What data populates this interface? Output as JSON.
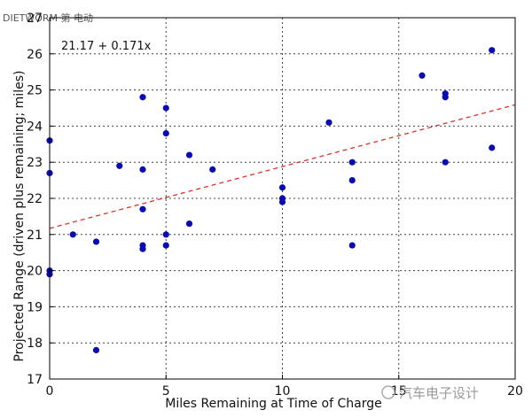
{
  "watermark_top": "DIETWORM 第 电动",
  "watermark_bottom": "汽车电子设计",
  "chart_data": {
    "type": "scatter",
    "title": "",
    "xlabel": "Miles Remaining at Time of Charge",
    "ylabel": "Projected Range (driven plus remaining; miles)",
    "xlim": [
      0,
      20
    ],
    "ylim": [
      17,
      27
    ],
    "xticks": [
      0,
      5,
      10,
      15,
      20
    ],
    "yticks": [
      17,
      18,
      19,
      20,
      21,
      22,
      23,
      24,
      25,
      26,
      27
    ],
    "grid": true,
    "marker_color": "#0b0bb5",
    "trend_color": "#e0302a",
    "trendline": {
      "intercept": 21.17,
      "slope": 0.171,
      "label": "21.17 + 0.171x"
    },
    "points": [
      [
        0,
        23.6
      ],
      [
        0,
        22.7
      ],
      [
        0,
        20.0
      ],
      [
        0,
        19.9
      ],
      [
        1,
        21.0
      ],
      [
        2,
        20.8
      ],
      [
        2,
        17.8
      ],
      [
        3,
        22.9
      ],
      [
        4,
        24.8
      ],
      [
        4,
        22.8
      ],
      [
        4,
        21.7
      ],
      [
        4,
        20.7
      ],
      [
        4,
        20.6
      ],
      [
        5,
        24.5
      ],
      [
        5,
        23.8
      ],
      [
        5,
        21.0
      ],
      [
        5,
        20.7
      ],
      [
        6,
        23.2
      ],
      [
        6,
        21.3
      ],
      [
        7,
        22.8
      ],
      [
        10,
        22.3
      ],
      [
        10,
        22.0
      ],
      [
        10,
        21.9
      ],
      [
        12,
        24.1
      ],
      [
        13,
        23.0
      ],
      [
        13,
        22.5
      ],
      [
        13,
        20.7
      ],
      [
        16,
        25.4
      ],
      [
        17,
        24.9
      ],
      [
        17,
        24.8
      ],
      [
        17,
        23.0
      ],
      [
        19,
        26.1
      ],
      [
        19,
        23.4
      ]
    ]
  }
}
